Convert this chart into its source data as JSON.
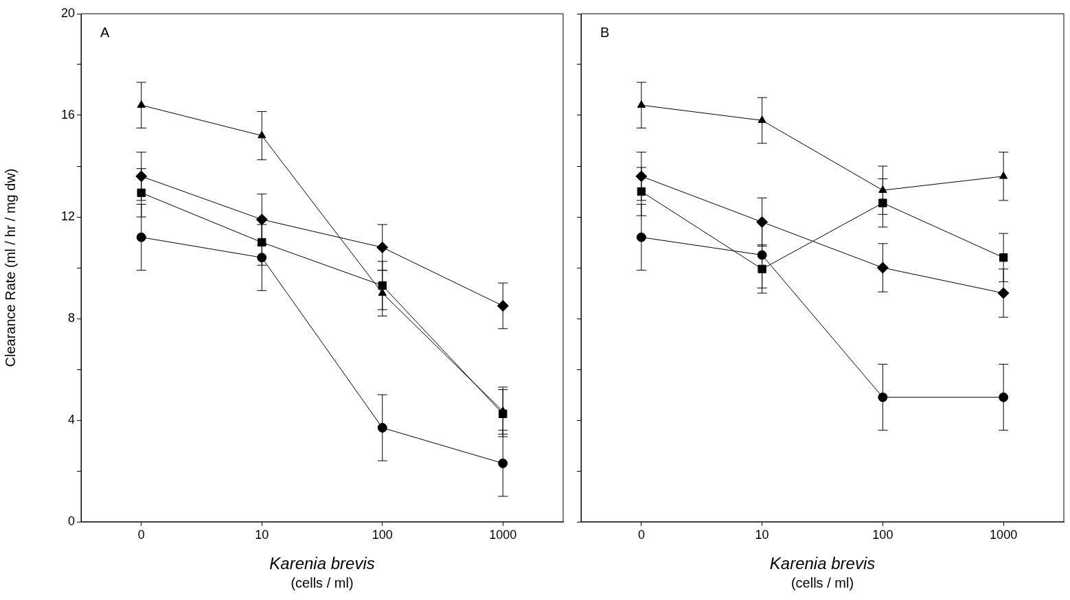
{
  "chart_data": [
    {
      "type": "line",
      "xlabel": "Karenia brevis\n(cells / ml)",
      "ylabel": "Clearance Rate (ml / hr / mg dw)",
      "annotations": [
        "A"
      ],
      "categories": [
        "0",
        "10",
        "100",
        "1000"
      ],
      "ylim": [
        0,
        20
      ],
      "yticks": [
        0,
        {
          "value": 2,
          "label": null
        },
        4,
        {
          "value": 6,
          "label": null
        },
        8,
        {
          "value": 10,
          "label": null
        },
        12,
        {
          "value": 14,
          "label": null
        },
        16,
        {
          "value": 18,
          "label": null
        },
        20
      ],
      "grid": false,
      "legend": false,
      "line_style": "solid",
      "series": [
        {
          "color": "#000000",
          "marker": "circle",
          "values": [
            11.2,
            10.4,
            3.7,
            2.3
          ],
          "errors": [
            1.3,
            1.3,
            1.3,
            1.3
          ]
        },
        {
          "color": "#000000",
          "marker": "triangle",
          "values": [
            16.4,
            15.2,
            9.0,
            4.35
          ],
          "errors": [
            0.9,
            0.95,
            0.9,
            [
              3.45,
              5.3
            ]
          ]
        },
        {
          "color": "#000000",
          "marker": "square",
          "values": [
            12.95,
            11.0,
            9.3,
            4.25
          ],
          "errors": [
            0.95,
            0.9,
            0.95,
            [
              3.35,
              5.2
            ]
          ]
        },
        {
          "color": "#000000",
          "marker": "diamond",
          "values": [
            13.6,
            11.9,
            10.8,
            8.5
          ],
          "errors": [
            0.95,
            1.0,
            0.9,
            0.9
          ]
        }
      ]
    },
    {
      "type": "line",
      "xlabel": "Karenia brevis\n(cells / ml)",
      "annotations": [
        "B"
      ],
      "tick_labels": "x",
      "categories": [
        "0",
        "10",
        "100",
        "1000"
      ],
      "ylim": [
        0,
        20
      ],
      "yticks": [
        0,
        {
          "value": 2,
          "label": null
        },
        4,
        {
          "value": 6,
          "label": null
        },
        8,
        {
          "value": 10,
          "label": null
        },
        12,
        {
          "value": 14,
          "label": null
        },
        16,
        {
          "value": 18,
          "label": null
        },
        20
      ],
      "grid": false,
      "legend": false,
      "line_style": "solid",
      "series": [
        {
          "color": "#000000",
          "marker": "circle",
          "values": [
            11.2,
            10.5,
            4.9,
            4.9
          ],
          "errors": [
            1.3,
            1.3,
            1.3,
            1.3
          ]
        },
        {
          "color": "#000000",
          "marker": "triangle",
          "values": [
            16.4,
            15.8,
            13.05,
            13.6
          ],
          "errors": [
            0.9,
            0.9,
            0.95,
            0.95
          ]
        },
        {
          "color": "#000000",
          "marker": "square",
          "values": [
            13.0,
            9.95,
            12.55,
            10.4
          ],
          "errors": [
            0.95,
            0.95,
            0.95,
            0.95
          ]
        },
        {
          "color": "#000000",
          "marker": "diamond",
          "values": [
            13.6,
            11.8,
            10.0,
            9.0
          ],
          "errors": [
            0.95,
            0.95,
            0.95,
            0.95
          ]
        }
      ]
    }
  ]
}
